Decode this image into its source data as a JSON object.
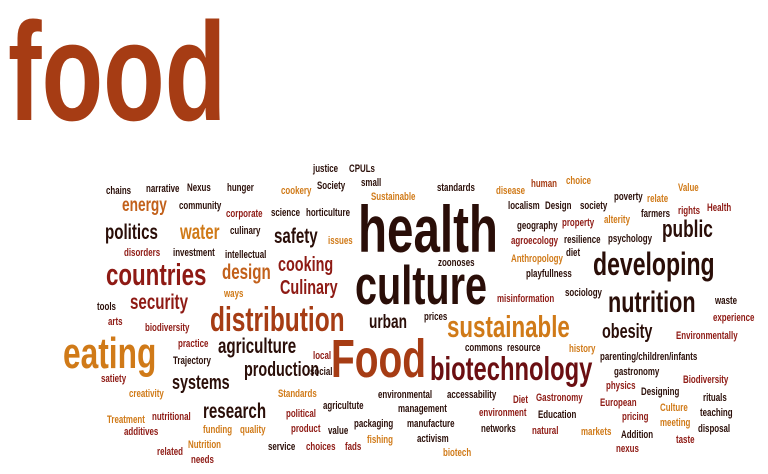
{
  "colors": {
    "rust": "#a63c14",
    "maroon": "#6b0f12",
    "dark": "#2a0e08",
    "amber": "#d07a18",
    "red": "#8e1a14",
    "orange": "#c2601a"
  },
  "words": [
    {
      "text": "food",
      "color": "rust"
    },
    {
      "text": "health",
      "color": "dark"
    },
    {
      "text": "culture",
      "color": "dark"
    },
    {
      "text": "Food",
      "color": "rust"
    },
    {
      "text": "countries",
      "color": "red"
    },
    {
      "text": "distribution",
      "color": "rust"
    },
    {
      "text": "eating",
      "color": "amber"
    },
    {
      "text": "developing",
      "color": "dark"
    },
    {
      "text": "nutrition",
      "color": "dark"
    },
    {
      "text": "sustainable",
      "color": "amber"
    },
    {
      "text": "biotechnology",
      "color": "maroon"
    },
    {
      "text": "security",
      "color": "red"
    },
    {
      "text": "politics",
      "color": "dark"
    },
    {
      "text": "energy",
      "color": "orange"
    },
    {
      "text": "water",
      "color": "amber"
    },
    {
      "text": "design",
      "color": "orange"
    },
    {
      "text": "cooking",
      "color": "red"
    },
    {
      "text": "Culinary",
      "color": "red"
    },
    {
      "text": "safety",
      "color": "dark"
    },
    {
      "text": "public",
      "color": "dark"
    },
    {
      "text": "agriculture",
      "color": "dark"
    },
    {
      "text": "production",
      "color": "dark"
    },
    {
      "text": "systems",
      "color": "dark"
    },
    {
      "text": "research",
      "color": "dark"
    },
    {
      "text": "urban",
      "color": "dark"
    },
    {
      "text": "obesity",
      "color": "dark"
    },
    {
      "text": "justice",
      "color": "dark"
    },
    {
      "text": "CPULs",
      "color": "dark"
    },
    {
      "text": "Nexus",
      "color": "dark"
    },
    {
      "text": "narrative",
      "color": "dark"
    },
    {
      "text": "chains",
      "color": "dark"
    },
    {
      "text": "hunger",
      "color": "dark"
    },
    {
      "text": "cookery",
      "color": "amber"
    },
    {
      "text": "Society",
      "color": "dark"
    },
    {
      "text": "small",
      "color": "dark"
    },
    {
      "text": "Sustainable",
      "color": "amber"
    },
    {
      "text": "standards",
      "color": "dark"
    },
    {
      "text": "disease",
      "color": "amber"
    },
    {
      "text": "human",
      "color": "rust"
    },
    {
      "text": "choice",
      "color": "amber"
    },
    {
      "text": "community",
      "color": "dark"
    },
    {
      "text": "corporate",
      "color": "red"
    },
    {
      "text": "science",
      "color": "dark"
    },
    {
      "text": "horticulture",
      "color": "dark"
    },
    {
      "text": "localism",
      "color": "dark"
    },
    {
      "text": "Design",
      "color": "dark"
    },
    {
      "text": "society",
      "color": "dark"
    },
    {
      "text": "poverty",
      "color": "dark"
    },
    {
      "text": "relate",
      "color": "amber"
    },
    {
      "text": "Value",
      "color": "amber"
    },
    {
      "text": "geography",
      "color": "dark"
    },
    {
      "text": "property",
      "color": "red"
    },
    {
      "text": "alterity",
      "color": "amber"
    },
    {
      "text": "farmers",
      "color": "dark"
    },
    {
      "text": "rights",
      "color": "red"
    },
    {
      "text": "Health",
      "color": "red"
    },
    {
      "text": "culinary",
      "color": "dark"
    },
    {
      "text": "intellectual",
      "color": "dark"
    },
    {
      "text": "issues",
      "color": "amber"
    },
    {
      "text": "agroecology",
      "color": "red"
    },
    {
      "text": "resilience",
      "color": "dark"
    },
    {
      "text": "psychology",
      "color": "dark"
    },
    {
      "text": "diet",
      "color": "dark"
    },
    {
      "text": "disorders",
      "color": "red"
    },
    {
      "text": "investment",
      "color": "dark"
    },
    {
      "text": "zoonoses",
      "color": "dark"
    },
    {
      "text": "Anthropology",
      "color": "amber"
    },
    {
      "text": "playfullness",
      "color": "dark"
    },
    {
      "text": "ways",
      "color": "amber"
    },
    {
      "text": "misinformation",
      "color": "red"
    },
    {
      "text": "sociology",
      "color": "dark"
    },
    {
      "text": "tools",
      "color": "dark"
    },
    {
      "text": "waste",
      "color": "dark"
    },
    {
      "text": "experience",
      "color": "red"
    },
    {
      "text": "arts",
      "color": "red"
    },
    {
      "text": "biodiversity",
      "color": "red"
    },
    {
      "text": "prices",
      "color": "dark"
    },
    {
      "text": "Environmentally",
      "color": "red"
    },
    {
      "text": "practice",
      "color": "red"
    },
    {
      "text": "commons",
      "color": "dark"
    },
    {
      "text": "resource",
      "color": "dark"
    },
    {
      "text": "history",
      "color": "amber"
    },
    {
      "text": "Trajectory",
      "color": "dark"
    },
    {
      "text": "local",
      "color": "red"
    },
    {
      "text": "social",
      "color": "dark"
    },
    {
      "text": "parenting/children/infants",
      "color": "dark"
    },
    {
      "text": "gastronomy",
      "color": "dark"
    },
    {
      "text": "satiety",
      "color": "red"
    },
    {
      "text": "Standards",
      "color": "amber"
    },
    {
      "text": "agricultute",
      "color": "dark"
    },
    {
      "text": "environmental",
      "color": "dark"
    },
    {
      "text": "accessability",
      "color": "dark"
    },
    {
      "text": "physics",
      "color": "red"
    },
    {
      "text": "Designing",
      "color": "dark"
    },
    {
      "text": "Biodiversity",
      "color": "red"
    },
    {
      "text": "creativity",
      "color": "amber"
    },
    {
      "text": "packaging",
      "color": "dark"
    },
    {
      "text": "Diet",
      "color": "red"
    },
    {
      "text": "Gastronomy",
      "color": "red"
    },
    {
      "text": "European",
      "color": "red"
    },
    {
      "text": "rituals",
      "color": "dark"
    },
    {
      "text": "management",
      "color": "dark"
    },
    {
      "text": "Treatment",
      "color": "amber"
    },
    {
      "text": "nutritional",
      "color": "red"
    },
    {
      "text": "political",
      "color": "red"
    },
    {
      "text": "product",
      "color": "red"
    },
    {
      "text": "environment",
      "color": "red"
    },
    {
      "text": "Education",
      "color": "dark"
    },
    {
      "text": "pricing",
      "color": "red"
    },
    {
      "text": "Culture",
      "color": "amber"
    },
    {
      "text": "teaching",
      "color": "dark"
    },
    {
      "text": "additives",
      "color": "red"
    },
    {
      "text": "funding",
      "color": "amber"
    },
    {
      "text": "quality",
      "color": "amber"
    },
    {
      "text": "value",
      "color": "dark"
    },
    {
      "text": "manufacture",
      "color": "dark"
    },
    {
      "text": "meeting",
      "color": "amber"
    },
    {
      "text": "disposal",
      "color": "dark"
    },
    {
      "text": "networks",
      "color": "dark"
    },
    {
      "text": "natural",
      "color": "red"
    },
    {
      "text": "markets",
      "color": "amber"
    },
    {
      "text": "Addition",
      "color": "dark"
    },
    {
      "text": "taste",
      "color": "red"
    },
    {
      "text": "Nutrition",
      "color": "amber"
    },
    {
      "text": "service",
      "color": "dark"
    },
    {
      "text": "choices",
      "color": "red"
    },
    {
      "text": "fads",
      "color": "red"
    },
    {
      "text": "fishing",
      "color": "amber"
    },
    {
      "text": "activism",
      "color": "dark"
    },
    {
      "text": "related",
      "color": "red"
    },
    {
      "text": "needs",
      "color": "red"
    },
    {
      "text": "biotech",
      "color": "amber"
    },
    {
      "text": "nexus",
      "color": "red"
    }
  ]
}
